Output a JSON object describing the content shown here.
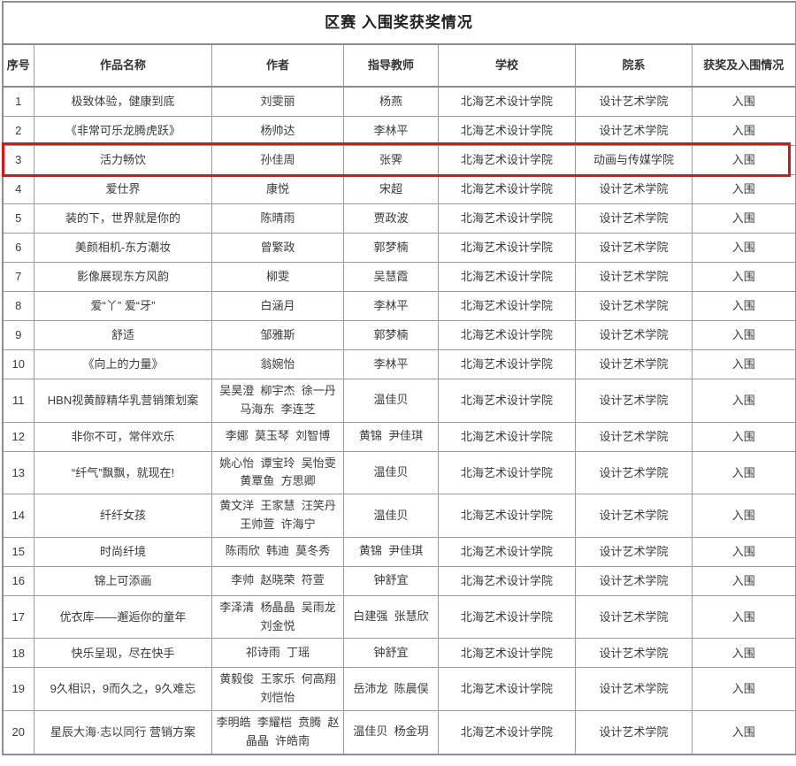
{
  "title": "区赛 入围奖获奖情况",
  "colors": {
    "highlight_box": "#e01212",
    "grid_border": "#9b9b9b",
    "text": "#3a3a3a"
  },
  "table": {
    "headers": [
      "序号",
      "作品名称",
      "作者",
      "指导教师",
      "学校",
      "院系",
      "获奖及入围情况"
    ],
    "rows": [
      {
        "no": "1",
        "work": "极致体验，健康到底",
        "authors": "刘雯丽",
        "teachers": "杨燕",
        "school": "北海艺术设计学院",
        "department": "设计艺术学院",
        "status": "入围",
        "highlighted": false
      },
      {
        "no": "2",
        "work": "《非常可乐龙腾虎跃》",
        "authors": "杨帅达",
        "teachers": "李林平",
        "school": "北海艺术设计学院",
        "department": "设计艺术学院",
        "status": "入围",
        "highlighted": false
      },
      {
        "no": "3",
        "work": "活力畅饮",
        "authors": "孙佳周",
        "teachers": "张霁",
        "school": "北海艺术设计学院",
        "department": "动画与传媒学院",
        "status": "入围",
        "highlighted": true
      },
      {
        "no": "4",
        "work": "爱仕界",
        "authors": "康悦",
        "teachers": "宋超",
        "school": "北海艺术设计学院",
        "department": "设计艺术学院",
        "status": "入围",
        "highlighted": false
      },
      {
        "no": "5",
        "work": "装的下，世界就是你的",
        "authors": "陈晴雨",
        "teachers": "贾政波",
        "school": "北海艺术设计学院",
        "department": "设计艺术学院",
        "status": "入围",
        "highlighted": false
      },
      {
        "no": "6",
        "work": "美颜相机-东方潮妆",
        "authors": "曾繁政",
        "teachers": "郭梦楠",
        "school": "北海艺术设计学院",
        "department": "设计艺术学院",
        "status": "入围",
        "highlighted": false
      },
      {
        "no": "7",
        "work": "影像展现东方风韵",
        "authors": "柳雯",
        "teachers": "吴慧霞",
        "school": "北海艺术设计学院",
        "department": "设计艺术学院",
        "status": "入围",
        "highlighted": false
      },
      {
        "no": "8",
        "work": "爱“丫” 爱“牙”",
        "authors": "白涵月",
        "teachers": "李林平",
        "school": "北海艺术设计学院",
        "department": "设计艺术学院",
        "status": "入围",
        "highlighted": false
      },
      {
        "no": "9",
        "work": "舒适",
        "authors": "邹雅斯",
        "teachers": "郭梦楠",
        "school": "北海艺术设计学院",
        "department": "设计艺术学院",
        "status": "入围",
        "highlighted": false
      },
      {
        "no": "10",
        "work": "《向上的力量》",
        "authors": "翁婉怡",
        "teachers": "李林平",
        "school": "北海艺术设计学院",
        "department": "设计艺术学院",
        "status": "入围",
        "highlighted": false
      },
      {
        "no": "11",
        "work": "HBN视黄醇精华乳营销策划案",
        "authors": "吴昊澄  柳宇杰  徐一丹  马海东  李连芝",
        "teachers": "温佳贝",
        "school": "北海艺术设计学院",
        "department": "设计艺术学院",
        "status": "入围",
        "highlighted": false
      },
      {
        "no": "12",
        "work": "非你不可，常伴欢乐",
        "authors": "李娜  莫玉琴  刘智博",
        "teachers": "黄锦  尹佳琪",
        "school": "北海艺术设计学院",
        "department": "设计艺术学院",
        "status": "入围",
        "highlighted": false
      },
      {
        "no": "13",
        "work": "“纤气”飘飘，就现在!",
        "authors": "姚心怡  谭宝玲  吴怡雯  黄覃鱼  方思卿",
        "teachers": "温佳贝",
        "school": "北海艺术设计学院",
        "department": "设计艺术学院",
        "status": "入围",
        "highlighted": false
      },
      {
        "no": "14",
        "work": "纤纤女孩",
        "authors": "黄文洋  王家慧  汪笑丹  王帅萱  许海宁",
        "teachers": "温佳贝",
        "school": "北海艺术设计学院",
        "department": "设计艺术学院",
        "status": "入围",
        "highlighted": false
      },
      {
        "no": "15",
        "work": "时尚纤境",
        "authors": "陈雨欣  韩迪  莫冬秀",
        "teachers": "黄锦  尹佳琪",
        "school": "北海艺术设计学院",
        "department": "设计艺术学院",
        "status": "入围",
        "highlighted": false
      },
      {
        "no": "16",
        "work": "锦上可添画",
        "authors": "李帅  赵晓荣  符萱",
        "teachers": "钟舒宜",
        "school": "北海艺术设计学院",
        "department": "设计艺术学院",
        "status": "入围",
        "highlighted": false
      },
      {
        "no": "17",
        "work": "优衣库——邂逅你的童年",
        "authors": "李泽清  杨晶晶  吴雨龙  刘金悦",
        "teachers": "白建强  张慧欣",
        "school": "北海艺术设计学院",
        "department": "设计艺术学院",
        "status": "入围",
        "highlighted": false
      },
      {
        "no": "18",
        "work": "快乐呈现，尽在快手",
        "authors": "祁诗雨  丁瑶",
        "teachers": "钟舒宜",
        "school": "北海艺术设计学院",
        "department": "设计艺术学院",
        "status": "入围",
        "highlighted": false
      },
      {
        "no": "19",
        "work": "9久相识，9而久之，9久难忘",
        "authors": "黄毅俊  王家乐  何高翔  刘恺怡",
        "teachers": "岳沛龙  陈晨俣",
        "school": "北海艺术设计学院",
        "department": "设计艺术学院",
        "status": "入围",
        "highlighted": false
      },
      {
        "no": "20",
        "work": "星辰大海·志以同行 营销方案",
        "authors": "李明皓  李耀桤  贲腾  赵晶晶  许皓南",
        "teachers": "温佳贝  杨金玥",
        "school": "北海艺术设计学院",
        "department": "设计艺术学院",
        "status": "入围",
        "highlighted": false
      }
    ]
  }
}
